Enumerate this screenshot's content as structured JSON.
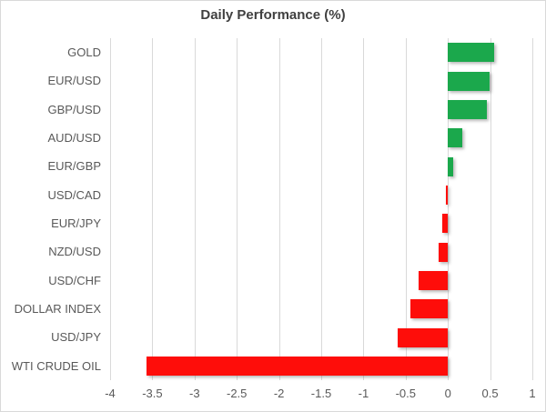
{
  "chart_data": {
    "type": "bar",
    "orientation": "horizontal",
    "title": "Daily Performance (%)",
    "categories": [
      "GOLD",
      "EUR/USD",
      "GBP/USD",
      "AUD/USD",
      "EUR/GBP",
      "USD/CAD",
      "EUR/JPY",
      "NZD/USD",
      "USD/CHF",
      "DOLLAR INDEX",
      "USD/JPY",
      "WTI CRUDE OIL"
    ],
    "values": [
      0.55,
      0.49,
      0.46,
      0.17,
      0.06,
      -0.02,
      -0.07,
      -0.11,
      -0.35,
      -0.44,
      -0.59,
      -3.57
    ],
    "xlabel": "",
    "ylabel": "",
    "xlim": [
      -4,
      1
    ],
    "xticks": [
      -4,
      -3.5,
      -3,
      -2.5,
      -2,
      -1.5,
      -1,
      -0.5,
      0,
      0.5,
      1
    ],
    "xtick_labels": [
      "-4",
      "-3.5",
      "-3",
      "-2.5",
      "-2",
      "-1.5",
      "-1",
      "-0.5",
      "0",
      "0.5",
      "1"
    ],
    "grid": true,
    "legend": false,
    "positive_color": "#1ba84c",
    "negative_color": "#fe0d0a",
    "gridline_color": "#d9d9d9",
    "label_color": "#595959",
    "title_color": "#404040"
  }
}
